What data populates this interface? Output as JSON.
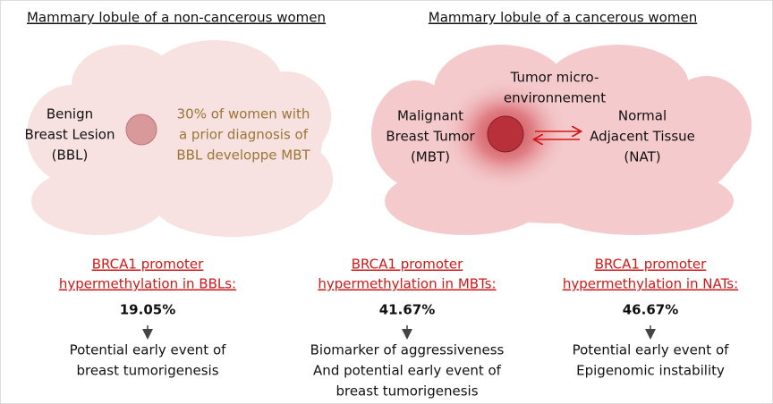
{
  "headings": [
    "Mammary lobule of a non-cancerous women",
    "Mammary lobule of a cancerous women"
  ],
  "left_cloud": {
    "lesion_label": [
      "Benign",
      "Breast Lesion",
      "(BBL)"
    ],
    "note": [
      "30% of women with",
      "a prior diagnosis of",
      "BBL developpe MBT"
    ]
  },
  "right_cloud": {
    "micro_label": [
      "Tumor micro-",
      "environnement"
    ],
    "tumor_label": [
      "Malignant",
      "Breast Tumor",
      "(MBT)"
    ],
    "normal_label": [
      "Normal",
      "Adjacent Tissue",
      "(NAT)"
    ]
  },
  "columns": [
    {
      "title": [
        "BRCA1 promoter",
        "hypermethylation in BBLs:"
      ],
      "value": "19.05%",
      "description": [
        "Potential early event of",
        "breast tumorigenesis"
      ]
    },
    {
      "title": [
        "BRCA1 promoter",
        "hypermethylation in MBTs:"
      ],
      "value": "41.67%",
      "description": [
        "Biomarker of aggressiveness",
        "And potential early event of",
        "breast tumorigenesis"
      ]
    },
    {
      "title": [
        "BRCA1 promoter",
        "hypermethylation in NATs:"
      ],
      "value": "46.67%",
      "description": [
        "Potential early event of",
        "Epigenomic instability"
      ]
    }
  ]
}
